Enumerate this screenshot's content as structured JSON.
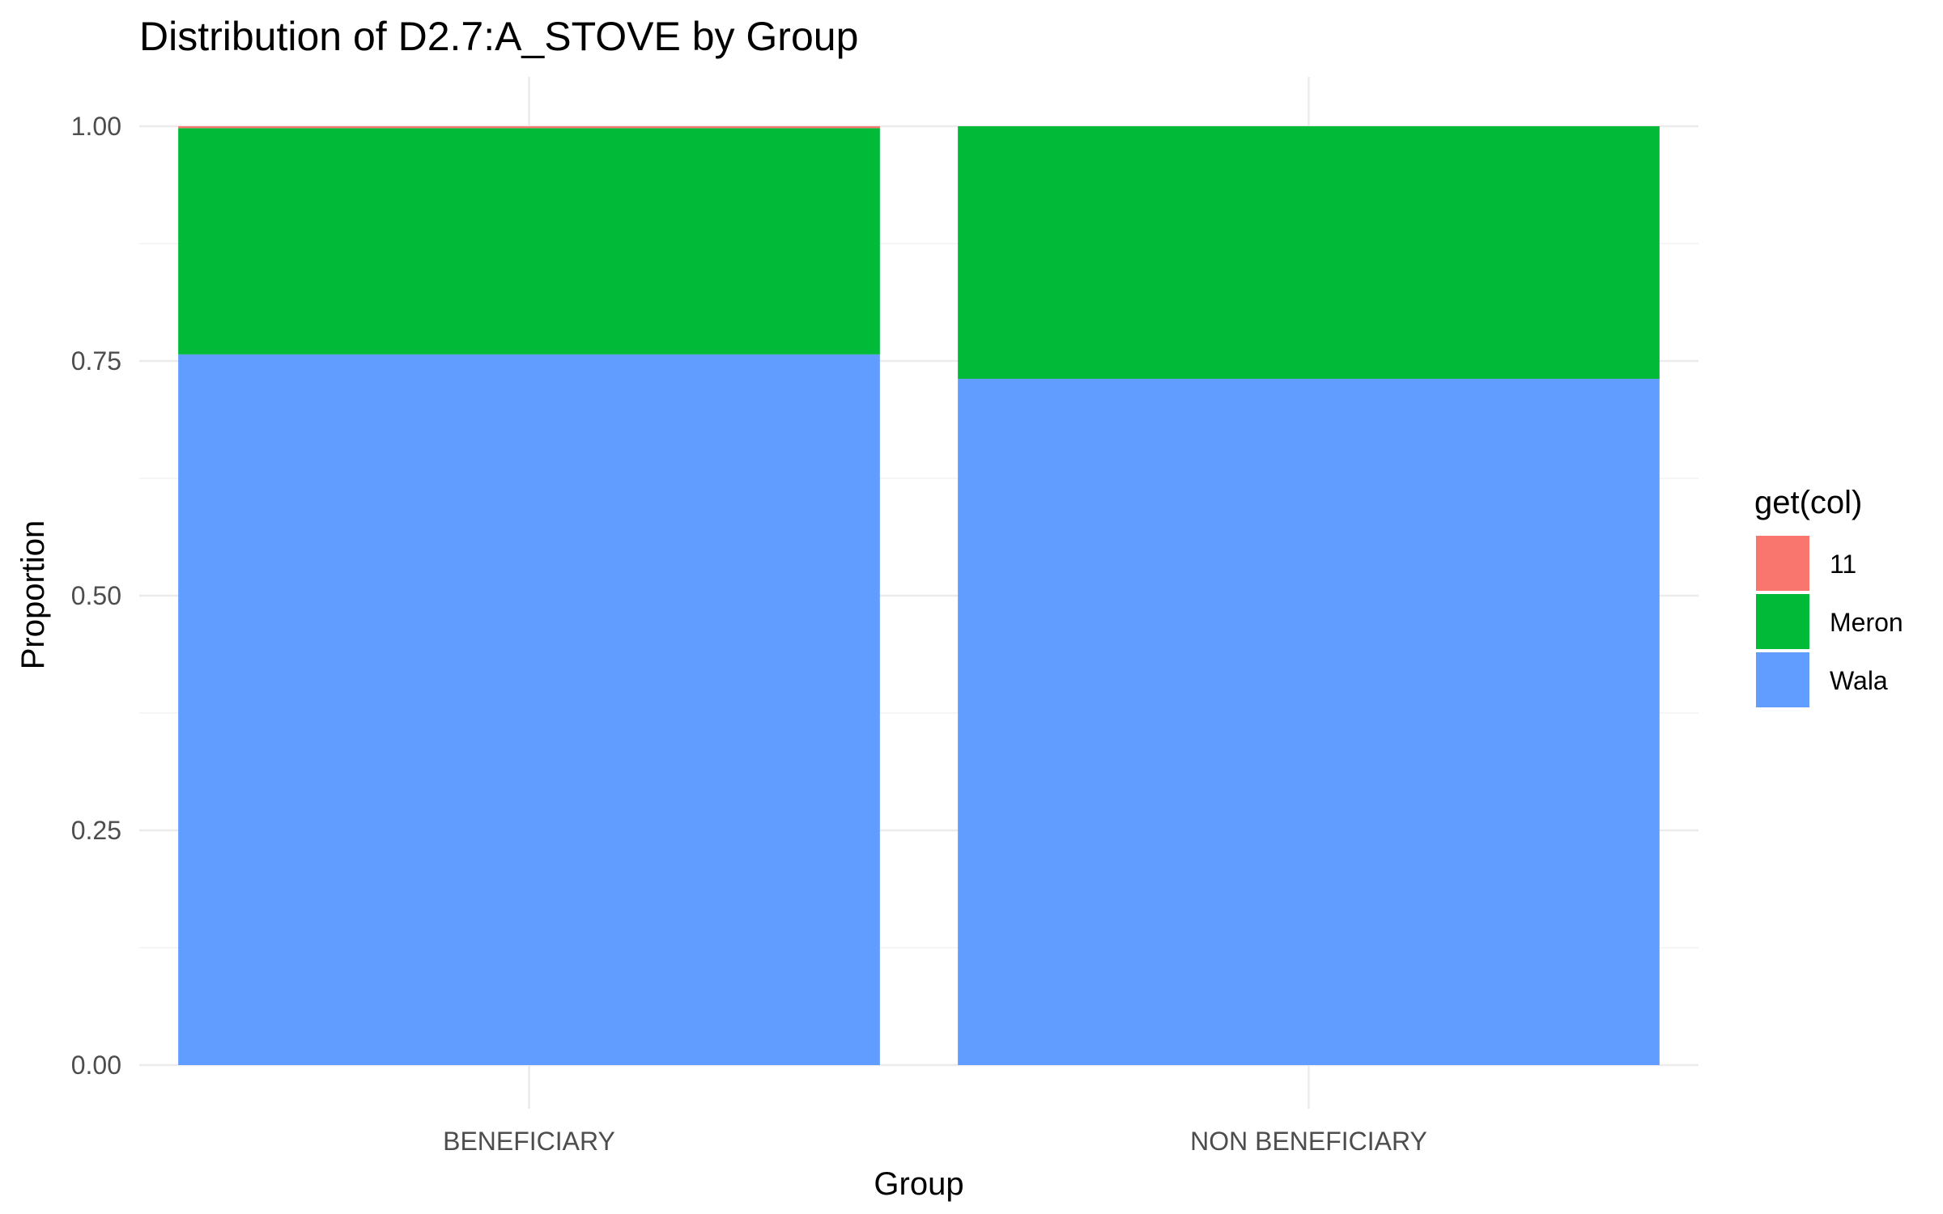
{
  "chart_data": {
    "type": "bar",
    "stacked": true,
    "title": "Distribution of D2.7:A_STOVE by Group",
    "xlabel": "Group",
    "ylabel": "Proportion",
    "ylim": [
      0,
      1
    ],
    "yticks": [
      "0.00",
      "0.25",
      "0.50",
      "0.75",
      "1.00"
    ],
    "categories": [
      "BENEFICIARY",
      "NON BENEFICIARY"
    ],
    "series": [
      {
        "name": "Wala",
        "color": "#619CFF",
        "values": [
          0.757,
          0.731
        ]
      },
      {
        "name": "Meron",
        "color": "#00BA38",
        "values": [
          0.241,
          0.269
        ]
      },
      {
        "name": "11",
        "color": "#F8766D",
        "values": [
          0.002,
          0.0
        ]
      }
    ],
    "legend": {
      "title": "get(col)",
      "position": "right",
      "entries": [
        "11",
        "Meron",
        "Wala"
      ]
    },
    "grid": true
  }
}
